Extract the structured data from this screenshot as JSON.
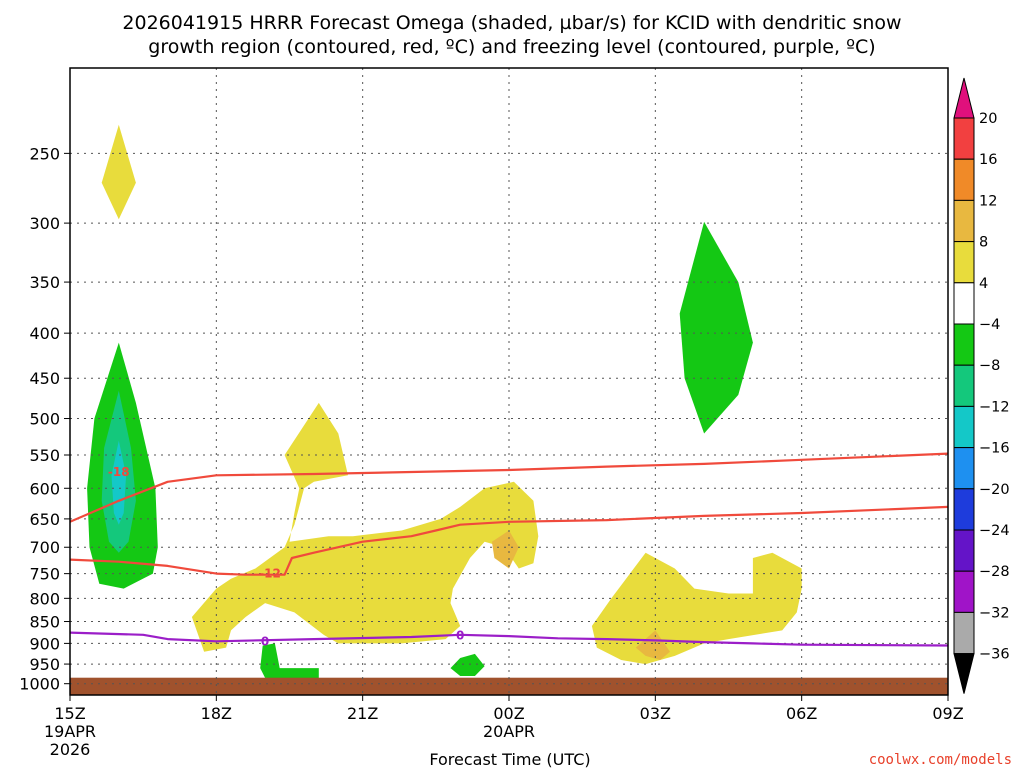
{
  "title_line1": "2026041915 HRRR Forecast Omega (shaded, µbar/s) for KCID with dendritic snow",
  "title_line2": "growth region (contoured, red, ºC) and freezing level (contoured, purple, ºC)",
  "credit": "coolwx.com/models",
  "colors": {
    "dgz": "#f04a3c",
    "freezing": "#9b1ec8",
    "ground": "#a0522d",
    "grid": "#555555"
  },
  "chart_data": {
    "type": "heatmap",
    "xlabel": "Forecast Time (UTC)",
    "xlim_hours": [
      0,
      18
    ],
    "x_ticks": [
      {
        "hour": 0,
        "label": "15Z",
        "sub1": "19APR",
        "sub2": "2026"
      },
      {
        "hour": 3,
        "label": "18Z",
        "sub1": "",
        "sub2": ""
      },
      {
        "hour": 6,
        "label": "21Z",
        "sub1": "",
        "sub2": ""
      },
      {
        "hour": 9,
        "label": "00Z",
        "sub1": "20APR",
        "sub2": ""
      },
      {
        "hour": 12,
        "label": "03Z",
        "sub1": "",
        "sub2": ""
      },
      {
        "hour": 15,
        "label": "06Z",
        "sub1": "",
        "sub2": ""
      },
      {
        "hour": 18,
        "label": "09Z",
        "sub1": "",
        "sub2": ""
      }
    ],
    "ylabel": "",
    "y_scale": "log",
    "ylim_mb": [
      1030,
      200
    ],
    "y_ticks": [
      250,
      300,
      350,
      400,
      450,
      500,
      550,
      600,
      650,
      700,
      750,
      800,
      850,
      900,
      950,
      1000
    ],
    "colorbar": {
      "labels": [
        "20",
        "16",
        "12",
        "8",
        "4",
        "−4",
        "−8",
        "−12",
        "−16",
        "−20",
        "−24",
        "−28",
        "−32",
        "−36"
      ],
      "bins": [
        {
          "from": 16,
          "to": 20,
          "color": "#f24040"
        },
        {
          "from": 12,
          "to": 16,
          "color": "#f08a28"
        },
        {
          "from": 8,
          "to": 12,
          "color": "#e8b840"
        },
        {
          "from": 4,
          "to": 8,
          "color": "#e8dc3c"
        },
        {
          "from": -4,
          "to": 4,
          "color": "#ffffff"
        },
        {
          "from": -8,
          "to": -4,
          "color": "#14c814"
        },
        {
          "from": -12,
          "to": -8,
          "color": "#14c87c"
        },
        {
          "from": -16,
          "to": -12,
          "color": "#14c8c8"
        },
        {
          "from": -20,
          "to": -16,
          "color": "#1e90f0"
        },
        {
          "from": -24,
          "to": -20,
          "color": "#1e3cdc"
        },
        {
          "from": -28,
          "to": -24,
          "color": "#6414c8"
        },
        {
          "from": -32,
          "to": -28,
          "color": "#a014c8"
        },
        {
          "from": -36,
          "to": -32,
          "color": "#aaaaaa"
        }
      ],
      "over_color": "#e0107c",
      "under_color": "#000000"
    },
    "omega_regions": [
      {
        "level": 4,
        "color": "#e8dc3c",
        "points": [
          [
            1.0,
            232
          ],
          [
            1.35,
            270
          ],
          [
            1.0,
            297
          ],
          [
            0.65,
            270
          ]
        ]
      },
      {
        "level": -4,
        "color": "#14c814",
        "points": [
          [
            1.0,
            410
          ],
          [
            1.35,
            480
          ],
          [
            1.75,
            600
          ],
          [
            1.8,
            700
          ],
          [
            1.7,
            750
          ],
          [
            1.1,
            780
          ],
          [
            0.6,
            770
          ],
          [
            0.4,
            700
          ],
          [
            0.35,
            600
          ],
          [
            0.5,
            500
          ]
        ]
      },
      {
        "level": -8,
        "color": "#14c87c",
        "points": [
          [
            1.0,
            465
          ],
          [
            1.25,
            540
          ],
          [
            1.35,
            620
          ],
          [
            1.2,
            690
          ],
          [
            1.0,
            710
          ],
          [
            0.8,
            690
          ],
          [
            0.65,
            620
          ],
          [
            0.7,
            540
          ]
        ]
      },
      {
        "level": -12,
        "color": "#14c8c8",
        "points": [
          [
            1.0,
            530
          ],
          [
            1.15,
            580
          ],
          [
            1.1,
            640
          ],
          [
            1.0,
            660
          ],
          [
            0.9,
            640
          ],
          [
            0.85,
            580
          ]
        ]
      },
      {
        "level": 4,
        "color": "#e8dc3c",
        "points": [
          [
            5.1,
            480
          ],
          [
            5.5,
            520
          ],
          [
            5.7,
            580
          ],
          [
            5.0,
            590
          ],
          [
            4.8,
            600
          ],
          [
            4.6,
            660
          ],
          [
            4.4,
            700
          ],
          [
            3.8,
            740
          ],
          [
            3.3,
            760
          ],
          [
            3.0,
            780
          ],
          [
            2.5,
            840
          ],
          [
            2.75,
            920
          ],
          [
            3.2,
            910
          ],
          [
            3.3,
            870
          ],
          [
            3.6,
            840
          ],
          [
            4.0,
            810
          ],
          [
            4.6,
            830
          ],
          [
            5.2,
            880
          ],
          [
            5.5,
            900
          ],
          [
            6.8,
            900
          ],
          [
            7.7,
            890
          ],
          [
            8.0,
            860
          ],
          [
            7.8,
            810
          ],
          [
            7.85,
            780
          ],
          [
            8.2,
            720
          ],
          [
            8.5,
            690
          ],
          [
            8.9,
            700
          ],
          [
            9.2,
            740
          ],
          [
            9.5,
            730
          ],
          [
            9.6,
            680
          ],
          [
            9.5,
            620
          ],
          [
            9.1,
            590
          ],
          [
            8.5,
            600
          ],
          [
            8.0,
            630
          ],
          [
            7.6,
            650
          ],
          [
            6.8,
            670
          ],
          [
            5.8,
            680
          ],
          [
            5.3,
            680
          ],
          [
            4.5,
            690
          ],
          [
            4.6,
            640
          ],
          [
            4.7,
            600
          ],
          [
            4.4,
            550
          ]
        ]
      },
      {
        "level": 8,
        "color": "#e8b840",
        "points": [
          [
            9.0,
            670
          ],
          [
            9.2,
            700
          ],
          [
            9.0,
            740
          ],
          [
            8.7,
            720
          ],
          [
            8.65,
            690
          ]
        ]
      },
      {
        "level": 4,
        "color": "#e8dc3c",
        "points": [
          [
            11.8,
            710
          ],
          [
            12.4,
            740
          ],
          [
            12.8,
            780
          ],
          [
            13.5,
            790
          ],
          [
            14.0,
            790
          ],
          [
            14.0,
            720
          ],
          [
            14.4,
            710
          ],
          [
            15.0,
            740
          ],
          [
            15.0,
            780
          ],
          [
            14.9,
            830
          ],
          [
            14.6,
            870
          ],
          [
            13.5,
            890
          ],
          [
            13.0,
            900
          ],
          [
            12.4,
            930
          ],
          [
            11.8,
            950
          ],
          [
            11.3,
            940
          ],
          [
            10.8,
            910
          ],
          [
            10.7,
            860
          ],
          [
            11.1,
            800
          ],
          [
            11.4,
            760
          ]
        ]
      },
      {
        "level": 8,
        "color": "#e8b840",
        "points": [
          [
            12.0,
            870
          ],
          [
            12.3,
            920
          ],
          [
            12.1,
            940
          ],
          [
            11.8,
            930
          ],
          [
            11.6,
            910
          ]
        ]
      },
      {
        "level": -4,
        "color": "#14c814",
        "points": [
          [
            13.0,
            299
          ],
          [
            13.7,
            350
          ],
          [
            14.0,
            410
          ],
          [
            13.7,
            470
          ],
          [
            13.0,
            520
          ],
          [
            12.6,
            450
          ],
          [
            12.5,
            380
          ]
        ]
      },
      {
        "level": -4,
        "color": "#14c814",
        "points": [
          [
            3.95,
            905
          ],
          [
            4.2,
            900
          ],
          [
            4.3,
            960
          ],
          [
            5.1,
            960
          ],
          [
            5.1,
            990
          ],
          [
            4.0,
            985
          ],
          [
            3.9,
            960
          ]
        ]
      },
      {
        "level": -4,
        "color": "#14c814",
        "points": [
          [
            8.0,
            935
          ],
          [
            8.3,
            925
          ],
          [
            8.5,
            955
          ],
          [
            8.3,
            980
          ],
          [
            8.0,
            980
          ],
          [
            7.8,
            960
          ]
        ]
      }
    ],
    "contours": [
      {
        "name": "DGZ upper (-18 °C)",
        "label": "-18",
        "color": "#f04a3c",
        "label_at": [
          1.0,
          575
        ],
        "points": [
          [
            0,
            655
          ],
          [
            1.0,
            620
          ],
          [
            2.0,
            590
          ],
          [
            3.0,
            580
          ],
          [
            5.0,
            578
          ],
          [
            7.0,
            575
          ],
          [
            9.0,
            572
          ],
          [
            11.0,
            567
          ],
          [
            13.0,
            563
          ],
          [
            15.0,
            557
          ],
          [
            18.0,
            548
          ]
        ]
      },
      {
        "name": "DGZ lower (-12 °C)",
        "label": "-12",
        "color": "#f04a3c",
        "label_at": [
          4.1,
          750
        ],
        "points": [
          [
            0,
            723
          ],
          [
            1.0,
            727
          ],
          [
            2.0,
            735
          ],
          [
            3.0,
            750
          ],
          [
            3.6,
            752
          ],
          [
            4.4,
            752
          ],
          [
            4.55,
            720
          ],
          [
            5.0,
            710
          ],
          [
            6.0,
            690
          ],
          [
            7.0,
            680
          ],
          [
            7.5,
            670
          ],
          [
            8.0,
            660
          ],
          [
            9.0,
            655
          ],
          [
            11.0,
            652
          ],
          [
            13.0,
            645
          ],
          [
            15.0,
            640
          ],
          [
            18.0,
            630
          ]
        ]
      },
      {
        "name": "Freezing level (0 °C)",
        "label": "0",
        "color": "#9b1ec8",
        "label_at": [
          4.0,
          895
        ],
        "points": [
          [
            0,
            875
          ],
          [
            1.5,
            880
          ],
          [
            2.0,
            890
          ],
          [
            3.0,
            895
          ],
          [
            5.0,
            890
          ],
          [
            7.0,
            885
          ],
          [
            8.0,
            880
          ],
          [
            9.0,
            883
          ],
          [
            10.0,
            888
          ],
          [
            11.0,
            890
          ],
          [
            12.0,
            893
          ],
          [
            13.0,
            897
          ],
          [
            14.0,
            900
          ],
          [
            15.0,
            903
          ],
          [
            18.0,
            905
          ]
        ]
      }
    ],
    "contour_labels": {
      "dgz_upper": "-18",
      "dgz_lower": "-12",
      "freezing": "0",
      "freezing_second": "0"
    },
    "second_freezing_label_at": [
      8.0,
      882
    ],
    "ground_level_mb": 1000
  }
}
